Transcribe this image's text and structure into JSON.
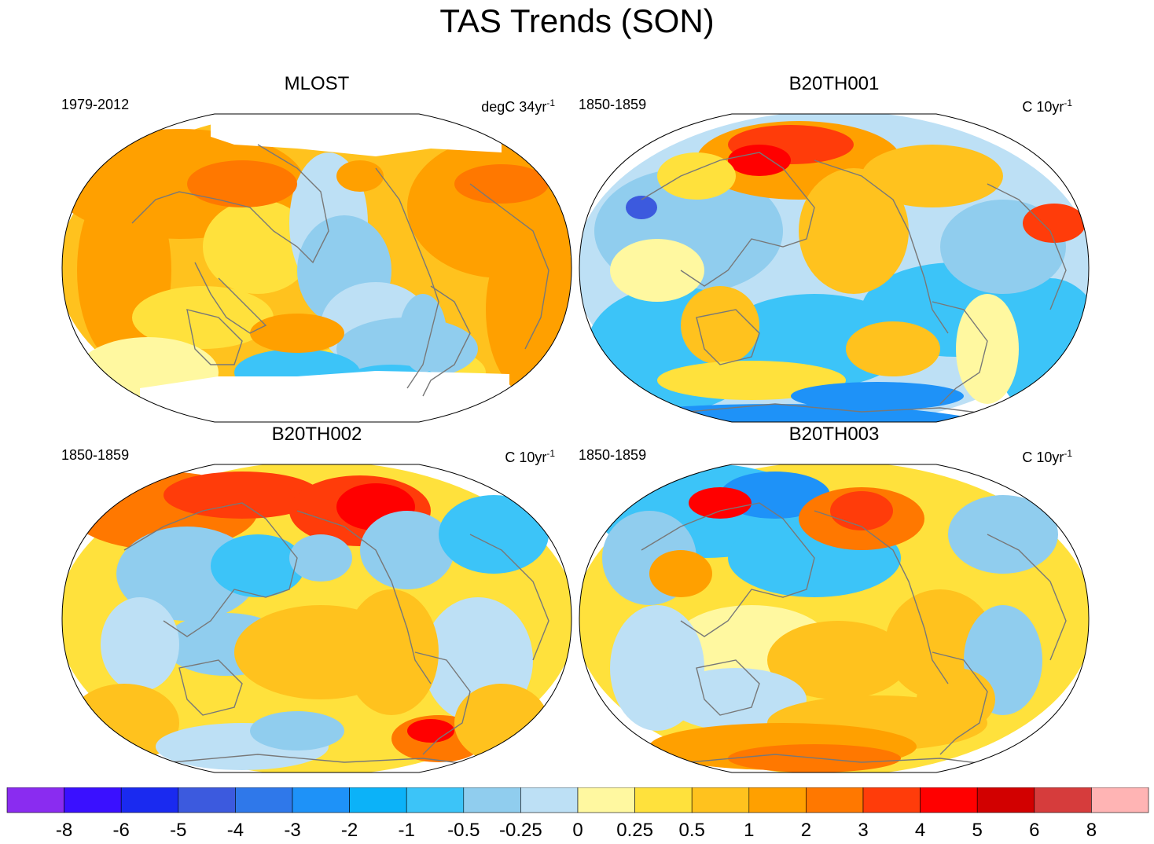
{
  "figure": {
    "title": "TAS Trends (SON)"
  },
  "panels": [
    {
      "title": "MLOST",
      "period": "1979-2012",
      "units": "degC 34yr",
      "units_exp": "-1",
      "land_mask": "observations"
    },
    {
      "title": "B20TH001",
      "period": "1850-1859",
      "units": "C 10yr",
      "units_exp": "-1",
      "land_mask": "model"
    },
    {
      "title": "B20TH002",
      "period": "1850-1859",
      "units": "C 10yr",
      "units_exp": "-1",
      "land_mask": "model"
    },
    {
      "title": "B20TH003",
      "period": "1850-1859",
      "units": "C 10yr",
      "units_exp": "-1",
      "land_mask": "model"
    }
  ],
  "colorbar": {
    "colors": [
      "#8a2cf0",
      "#3a10ff",
      "#1a2af0",
      "#3c5ade",
      "#2f78ea",
      "#1e92f8",
      "#0cb2f8",
      "#3cc4f8",
      "#90cdee",
      "#bde0f5",
      "#fff8a0",
      "#ffe13c",
      "#ffc21e",
      "#ffa000",
      "#ff7800",
      "#ff3c0a",
      "#ff0000",
      "#d20000",
      "#d63c3c",
      "#ffb4b4"
    ],
    "labels": [
      "-8",
      "-6",
      "-5",
      "-4",
      "-3",
      "-2",
      "-1",
      "-0.5",
      "-0.25",
      "0",
      "0.25",
      "0.5",
      "1",
      "2",
      "3",
      "4",
      "5",
      "6",
      "8"
    ]
  },
  "colors": {
    "coast": "#787878",
    "missing": "#ffffff",
    "outline": "#000000"
  }
}
